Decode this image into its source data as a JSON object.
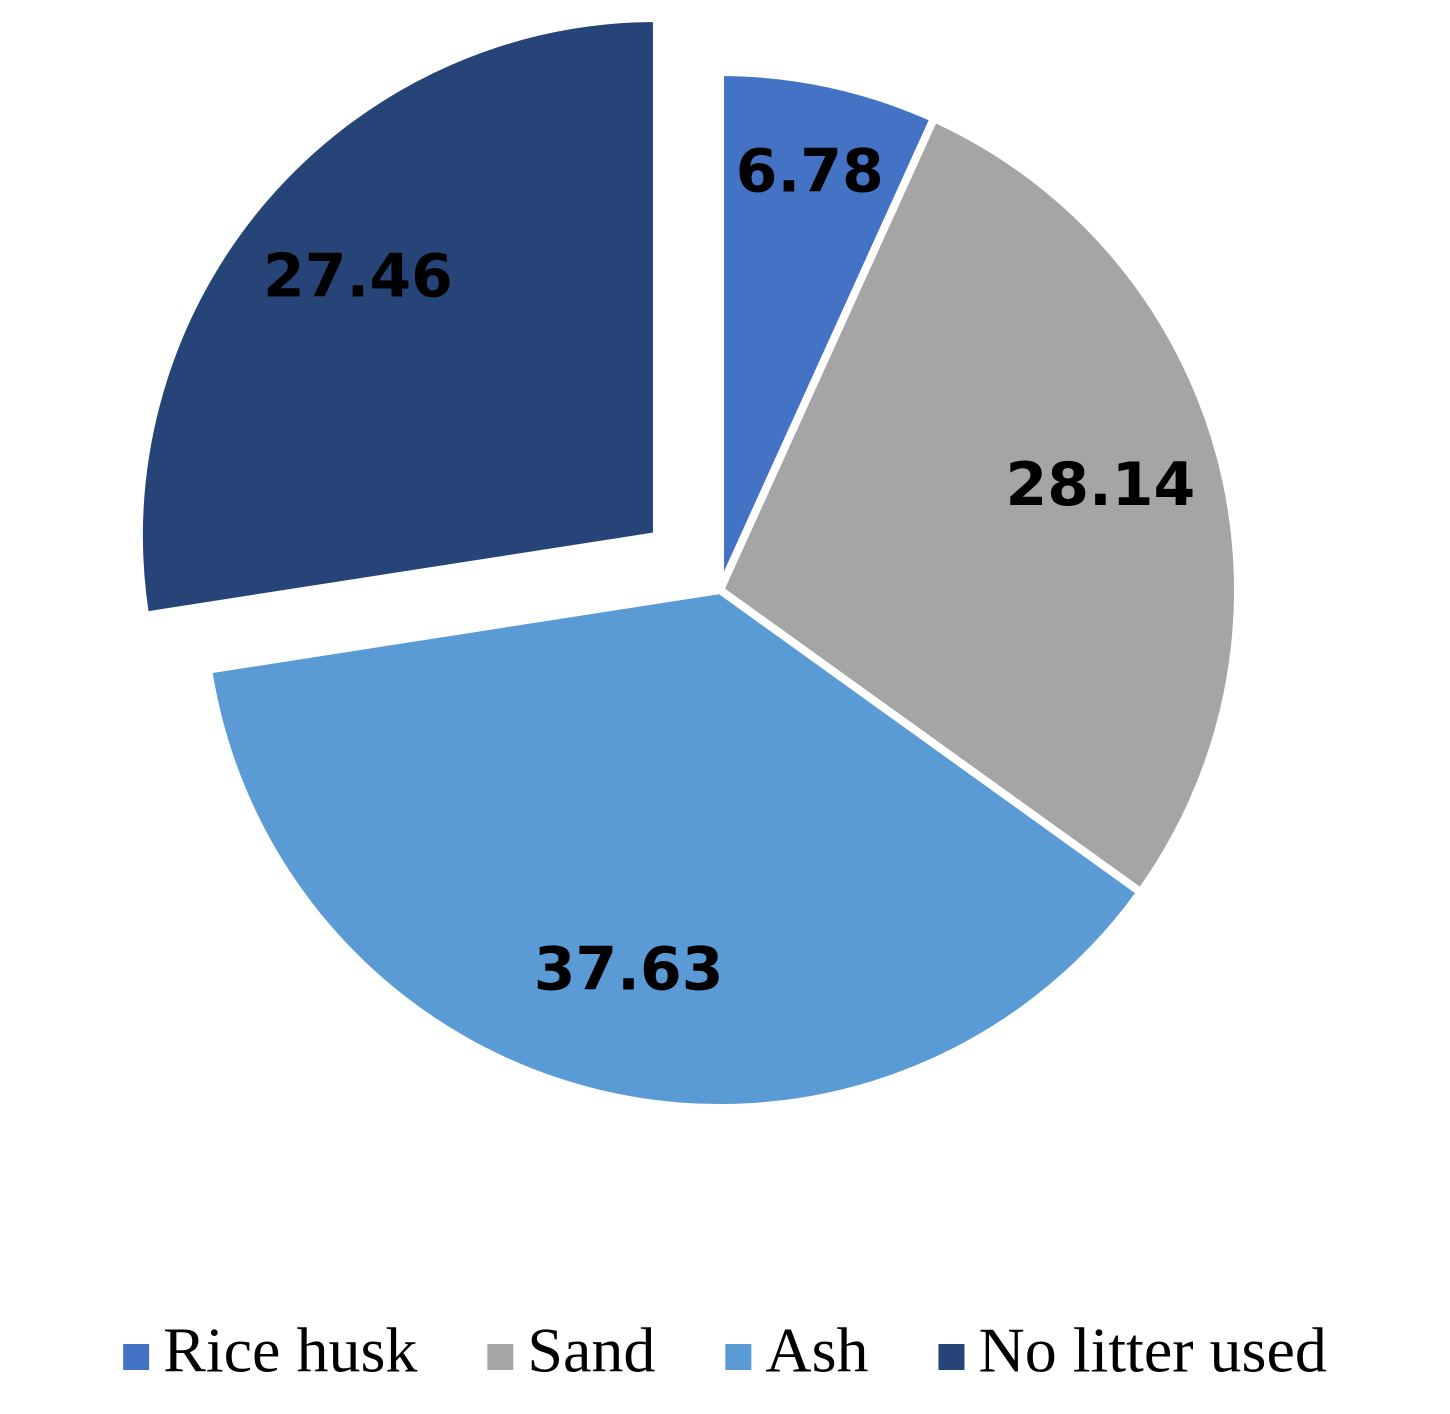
{
  "chart_data": {
    "type": "pie",
    "categories": [
      "Rice husk",
      "Sand",
      "Ash",
      "No litter used"
    ],
    "values": [
      6.78,
      28.14,
      37.63,
      27.46
    ],
    "colors": [
      "#4472c4",
      "#a5a5a5",
      "#5b9bd5",
      "#264478"
    ],
    "explode": [
      false,
      false,
      false,
      true
    ],
    "legend": "bottom"
  }
}
